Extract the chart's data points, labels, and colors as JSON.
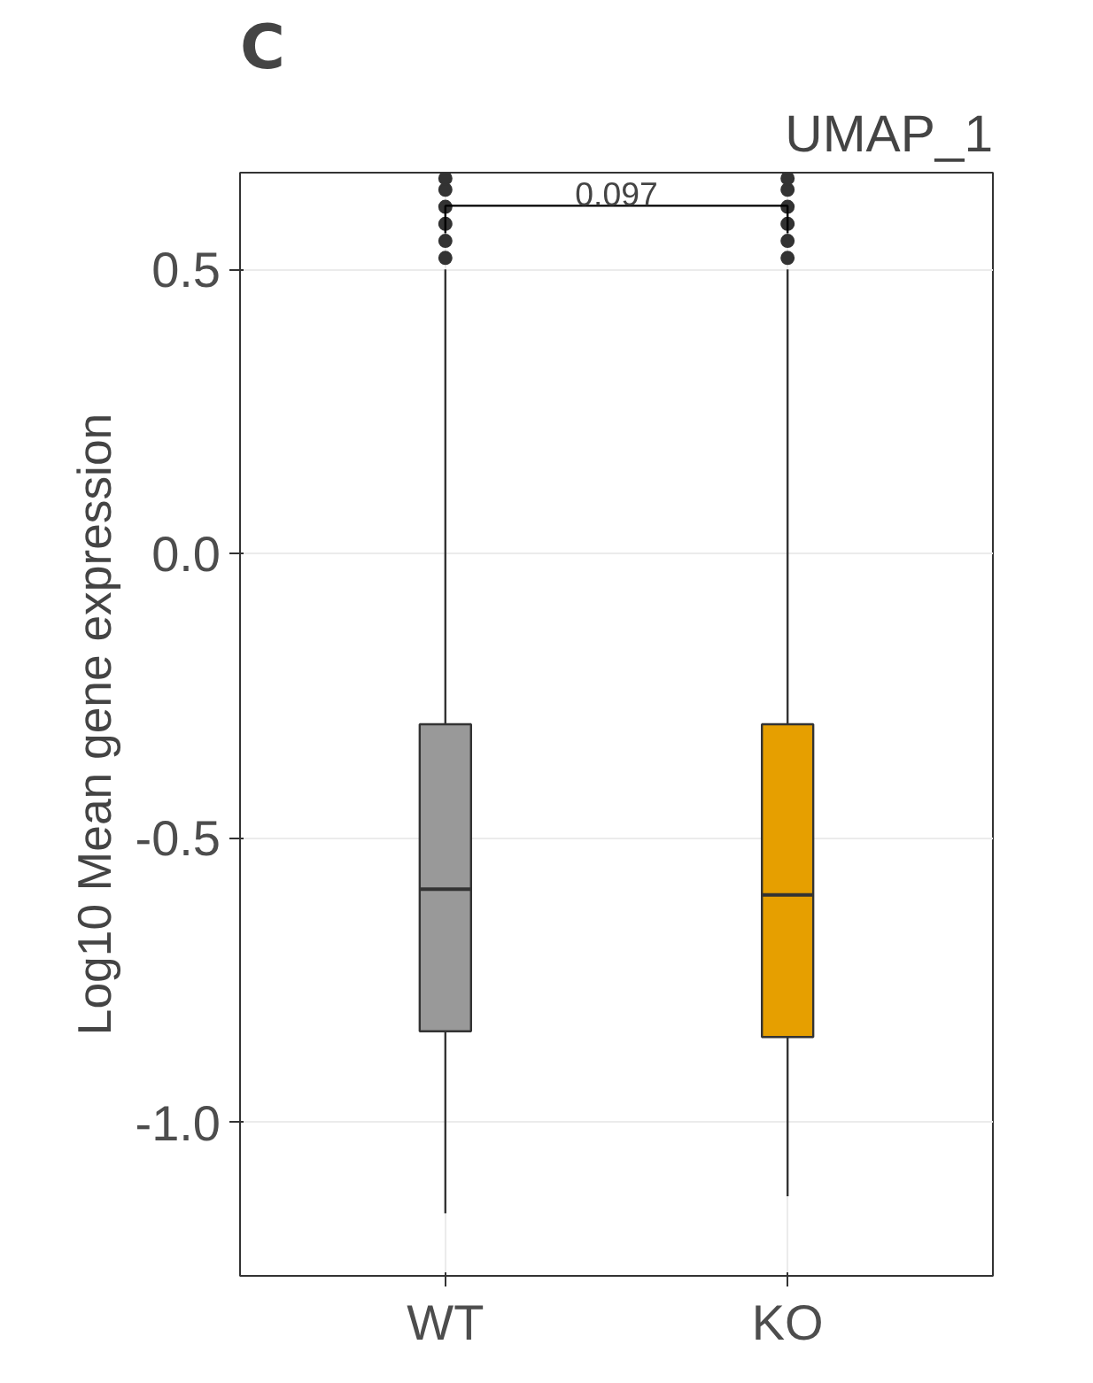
{
  "chart_data": {
    "type": "box",
    "title": "C",
    "categories": [
      "WT",
      "KO"
    ],
    "ylabel": "Log10 Mean gene expression",
    "ylim": [
      -1.27,
      0.67
    ],
    "yticks": [
      {
        "value": -1.0,
        "label": "-1.0"
      },
      {
        "value": -0.5,
        "label": "-0.5"
      },
      {
        "value": 0.0,
        "label": "0.0"
      },
      {
        "value": 0.5,
        "label": "0.5"
      }
    ],
    "grid": true,
    "colors": [
      "#999999",
      "#e69f00"
    ],
    "boxes": [
      {
        "low": -1.16,
        "q1": -0.84,
        "median": -0.59,
        "q3": -0.3,
        "high": 0.5,
        "outliers": [
          0.52,
          0.55,
          0.58,
          0.61,
          0.64,
          0.66
        ]
      },
      {
        "low": -1.13,
        "q1": -0.85,
        "median": -0.6,
        "q3": -0.3,
        "high": 0.5,
        "outliers": [
          0.52,
          0.55,
          0.58,
          0.61,
          0.64,
          0.66
        ]
      }
    ],
    "annotations": [
      "UMAP_1",
      "0.097"
    ]
  }
}
